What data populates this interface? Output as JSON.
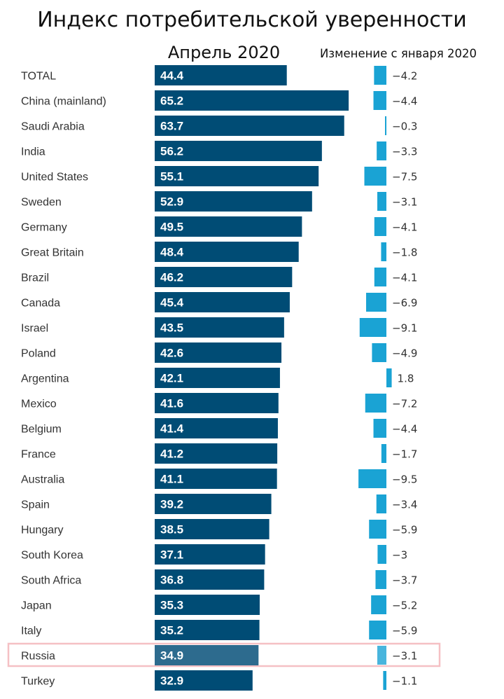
{
  "colors": {
    "main_bar": "#004c75",
    "highlight_bar": "#2d6b8e",
    "change_bar": "#1aa3d4",
    "highlight_box": "#f5c0c4"
  },
  "chart_data": {
    "type": "bar",
    "title": "Индекс потребительской уверенности",
    "main_series_label": "Апрель 2020",
    "change_series_label": "Изменение с января 2020",
    "highlight": "Russia",
    "categories": [
      "TOTAL",
      "China (mainland)",
      "Saudi Arabia",
      "India",
      "United States",
      "Sweden",
      "Germany",
      "Great Britain",
      "Brazil",
      "Canada",
      "Israel",
      "Poland",
      "Argentina",
      "Mexico",
      "Belgium",
      "France",
      "Australia",
      "Spain",
      "Hungary",
      "South Korea",
      "South Africa",
      "Japan",
      "Italy",
      "Russia",
      "Turkey"
    ],
    "values": [
      44.4,
      65.2,
      63.7,
      56.2,
      55.1,
      52.9,
      49.5,
      48.4,
      46.2,
      45.4,
      43.5,
      42.6,
      42.1,
      41.6,
      41.4,
      41.2,
      41.1,
      39.2,
      38.5,
      37.1,
      36.8,
      35.3,
      35.2,
      34.9,
      32.9
    ],
    "value_labels": [
      "44.4",
      "65.2",
      "63.7",
      "56.2",
      "55.1",
      "52.9",
      "49.5",
      "48.4",
      "46.2",
      "45.4",
      "43.5",
      "42.6",
      "42.1",
      "41.6",
      "41.4",
      "41.2",
      "41.1",
      "39.2",
      "38.5",
      "37.1",
      "36.8",
      "35.3",
      "35.2",
      "34.9",
      "32.9"
    ],
    "changes": [
      -4.2,
      -4.4,
      -0.3,
      -3.3,
      -7.5,
      -3.1,
      -4.1,
      -1.8,
      -4.1,
      -6.9,
      -9.1,
      -4.9,
      1.8,
      -7.2,
      -4.4,
      -1.7,
      -9.5,
      -3.4,
      -5.9,
      -3,
      -3.7,
      -5.2,
      -5.9,
      -3.1,
      -1.1
    ],
    "change_labels": [
      "−4.2",
      "−4.4",
      "−0.3",
      "−3.3",
      "−7.5",
      "−3.1",
      "−4.1",
      "−1.8",
      "−4.1",
      "−6.9",
      "−9.1",
      "−4.9",
      "1.8",
      "−7.2",
      "−4.4",
      "−1.7",
      "−9.5",
      "−3.4",
      "−5.9",
      "−3",
      "−3.7",
      "−5.2",
      "−5.9",
      "−3.1",
      "−1.1"
    ]
  }
}
